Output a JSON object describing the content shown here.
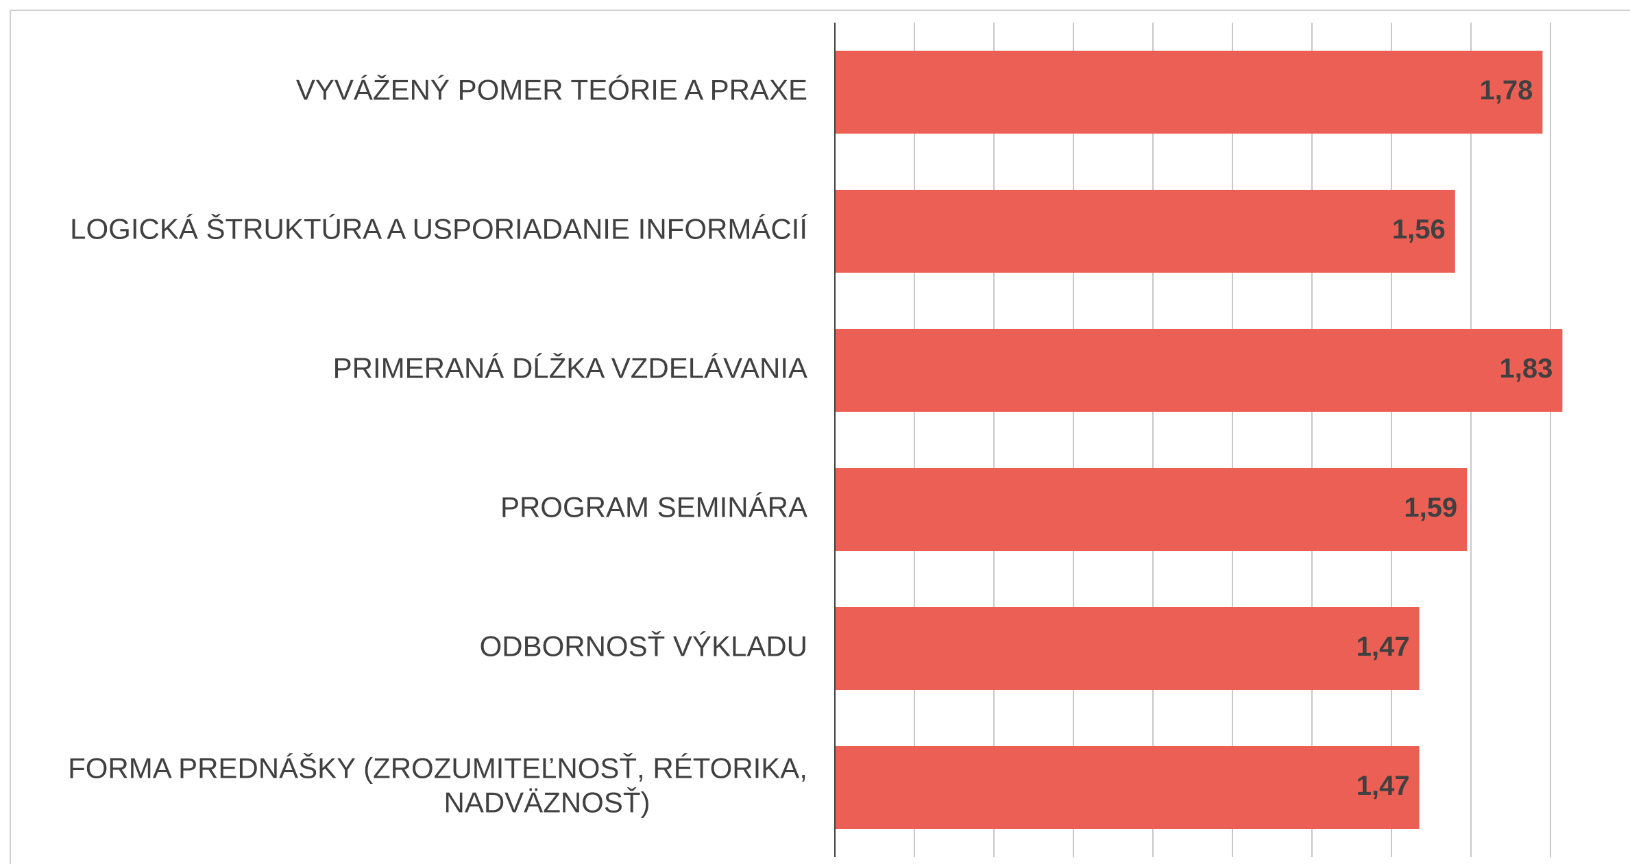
{
  "chart_data": {
    "type": "barh",
    "categories": [
      "VYVÁŽENÝ POMER TEÓRIE A PRAXE",
      "LOGICKÁ ŠTRUKTÚRA A USPORIADANIE INFORMÁCIÍ",
      "PRIMERANÁ DĹŽKA VZDELÁVANIA",
      "PROGRAM SEMINÁRA",
      "ODBORNOSŤ VÝKLADU",
      "FORMA PREDNÁŠKY (ZROZUMITEĽNOSŤ, RÉTORIKA,\nNADVÄZNOSŤ)"
    ],
    "values": [
      1.78,
      1.56,
      1.83,
      1.59,
      1.47,
      1.47
    ],
    "value_labels": [
      "1,78",
      "1,56",
      "1,83",
      "1,59",
      "1,47",
      "1,47"
    ],
    "color": "#ec5f55",
    "xlim": [
      0,
      2
    ],
    "xticks": [
      0.2,
      0.4,
      0.6,
      0.8,
      1,
      1.2,
      1.4,
      1.6,
      1.8
    ],
    "grid": true
  }
}
